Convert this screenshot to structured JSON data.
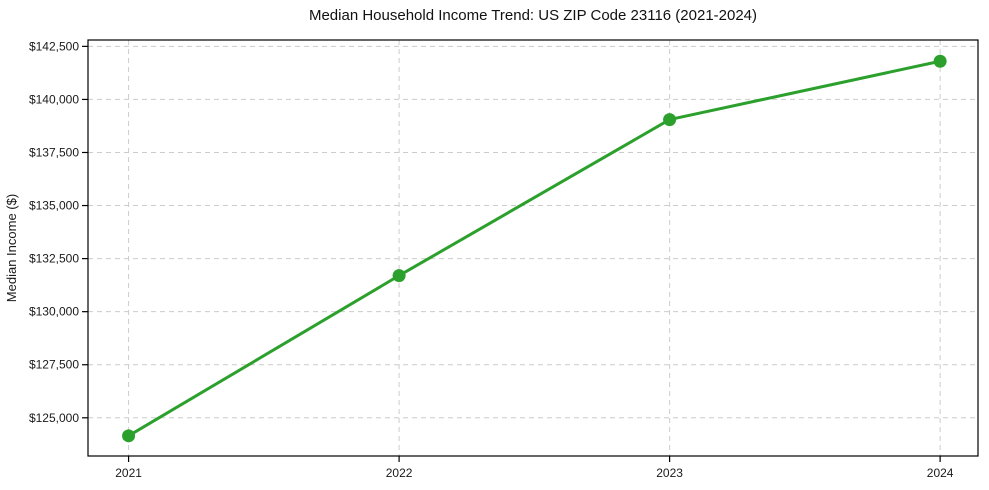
{
  "chart_data": {
    "type": "line",
    "title": "Median Household Income Trend: US ZIP Code 23116 (2021-2024)",
    "xlabel": "",
    "ylabel": "Median Income ($)",
    "x": [
      2021,
      2022,
      2023,
      2024
    ],
    "series": [
      {
        "name": "Median Household Income",
        "values": [
          124150,
          131700,
          139050,
          141800
        ],
        "color": "#2ca02c"
      }
    ],
    "x_ticks": [
      {
        "value": 2021,
        "label": "2021"
      },
      {
        "value": 2022,
        "label": "2022"
      },
      {
        "value": 2023,
        "label": "2023"
      },
      {
        "value": 2024,
        "label": "2024"
      }
    ],
    "y_ticks": [
      {
        "value": 125000,
        "label": "$125,000"
      },
      {
        "value": 127500,
        "label": "$127,500"
      },
      {
        "value": 130000,
        "label": "$130,000"
      },
      {
        "value": 132500,
        "label": "$132,500"
      },
      {
        "value": 135000,
        "label": "$135,000"
      },
      {
        "value": 137500,
        "label": "$137,500"
      },
      {
        "value": 140000,
        "label": "$140,000"
      },
      {
        "value": 142500,
        "label": "$142,500"
      }
    ],
    "xlim": [
      2020.85,
      2024.14
    ],
    "ylim": [
      123200,
      142800
    ],
    "grid": true,
    "grid_style": "dashed",
    "legend": "none",
    "colors": {
      "line": "#2ca02c",
      "marker": "#2ca02c",
      "grid": "#cccccc",
      "spine": "#000000",
      "text": "#1a1a1a"
    }
  }
}
